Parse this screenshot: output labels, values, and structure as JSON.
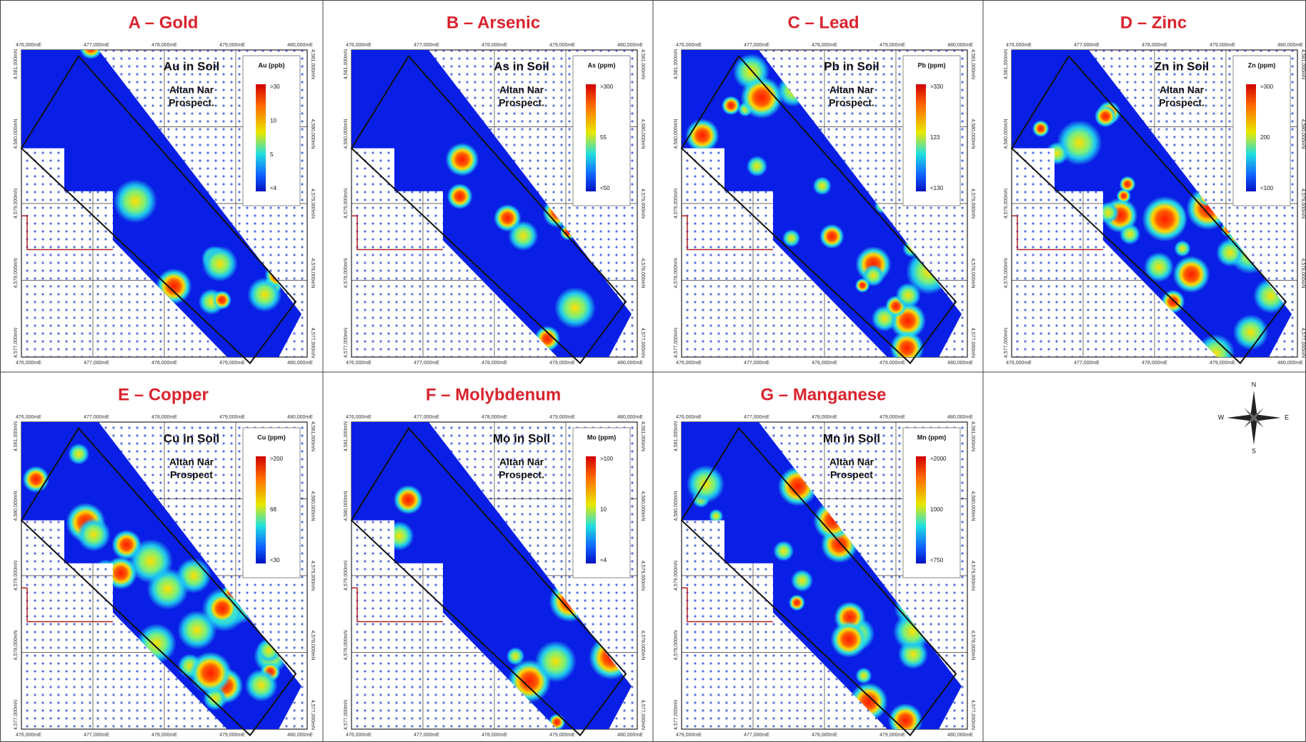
{
  "panels": [
    {
      "title": "A – Gold",
      "map_label": "Au in Soil",
      "prospect": [
        "Altan Nar",
        "Prospect."
      ],
      "legend_title": "Au (ppb)",
      "legend_labels": [
        ">30",
        "10",
        "5",
        "<4"
      ]
    },
    {
      "title": "B – Arsenic",
      "map_label": "As in Soil",
      "prospect": [
        "Altan Nar",
        "Prospect."
      ],
      "legend_title": "As (ppm)",
      "legend_labels": [
        ">300",
        "55",
        "<50"
      ]
    },
    {
      "title": "C – Lead",
      "map_label": "Pb in Soil",
      "prospect": [
        "Altan Nar",
        "Prospect."
      ],
      "legend_title": "Pb (ppm)",
      "legend_labels": [
        ">330",
        "123",
        "<130"
      ]
    },
    {
      "title": "D – Zinc",
      "map_label": "Zn in Soil",
      "prospect": [
        "Altan Nar",
        "Prospect."
      ],
      "legend_title": "Zn (ppm)",
      "legend_labels": [
        ">300",
        "200",
        "<100"
      ]
    },
    {
      "title": "E – Copper",
      "map_label": "Cu in Soil",
      "prospect": [
        "Altan Nar",
        "Prospect"
      ],
      "legend_title": "Cu (ppm)",
      "legend_labels": [
        ">200",
        "68",
        "<30"
      ]
    },
    {
      "title": "F – Molybdenum",
      "map_label": "Mo in Soil",
      "prospect": [
        "Altan Nar",
        "Prospect."
      ],
      "legend_title": "Mo (ppm)",
      "legend_labels": [
        ">100",
        "10",
        "<4"
      ]
    },
    {
      "title": "G – Manganese",
      "map_label": "Mn in Soil",
      "prospect": [
        "Altan Nar",
        "Prospect"
      ],
      "legend_title": "Mn (ppm)",
      "legend_labels": [
        ">2000",
        "1000",
        "<750"
      ]
    }
  ],
  "x_ticks": [
    "476,000mE",
    "477,000mE",
    "478,000mE",
    "479,000mE",
    "480,000mE"
  ],
  "y_ticks": [
    "4,581,000mN",
    "4,580,000mN",
    "4,579,000mN",
    "4,578,000mN",
    "4,577,000mN"
  ],
  "compass": {
    "n": "N",
    "s": "S",
    "e": "E",
    "w": "W"
  }
}
